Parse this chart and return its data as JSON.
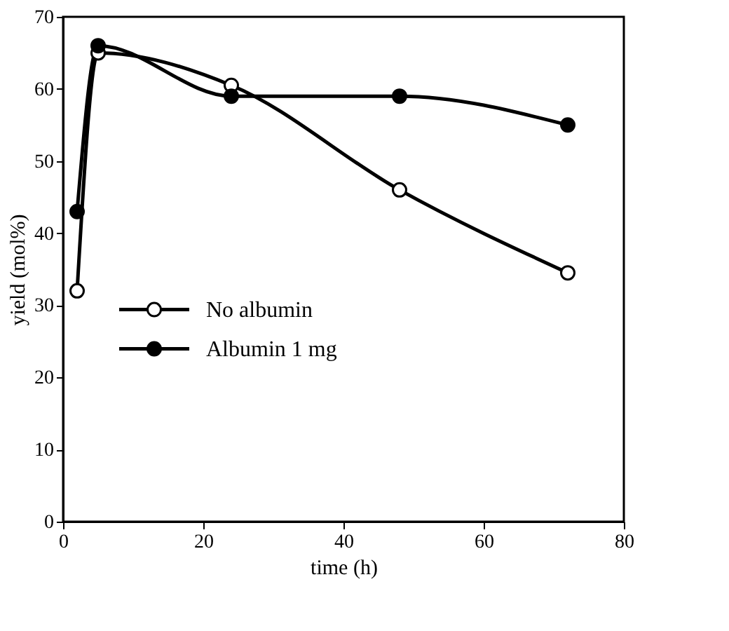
{
  "chart_data": {
    "type": "line",
    "xlabel": "time (h)",
    "ylabel": "yield (mol%)",
    "x": [
      2,
      5,
      24,
      48,
      72
    ],
    "series": [
      {
        "name": "No albumin",
        "color": "#000000",
        "values": [
          32,
          65,
          60.5,
          46,
          34.5
        ]
      },
      {
        "name": "Albumin 1 mg",
        "color": "#000000",
        "values": [
          43,
          66,
          59,
          59,
          55
        ]
      }
    ],
    "xlim": [
      0,
      80
    ],
    "xticks": [
      0,
      20,
      40,
      60,
      80
    ],
    "ylim": [
      0,
      70
    ],
    "yticks": [
      0,
      10,
      20,
      30,
      40,
      50,
      60,
      70
    ],
    "grid": false,
    "legend": "left",
    "marker": "circle",
    "line_style": "solid"
  }
}
